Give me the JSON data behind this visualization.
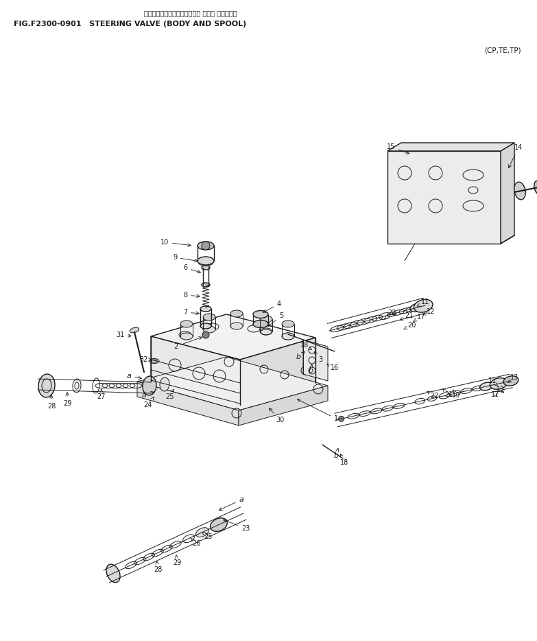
{
  "title_japanese": "ステアリングバルブ（ボディー オヨビー スプール）",
  "title_fig": "FIG.F2300-0901   STEERING VALVE (BODY AND SPOOL)",
  "subtitle": "(CP,TE,TP)",
  "bg_color": "#ffffff",
  "line_color": "#1a1a1a",
  "text_color": "#1a1a1a",
  "fig_width": 7.83,
  "fig_height": 9.34,
  "dpi": 100
}
